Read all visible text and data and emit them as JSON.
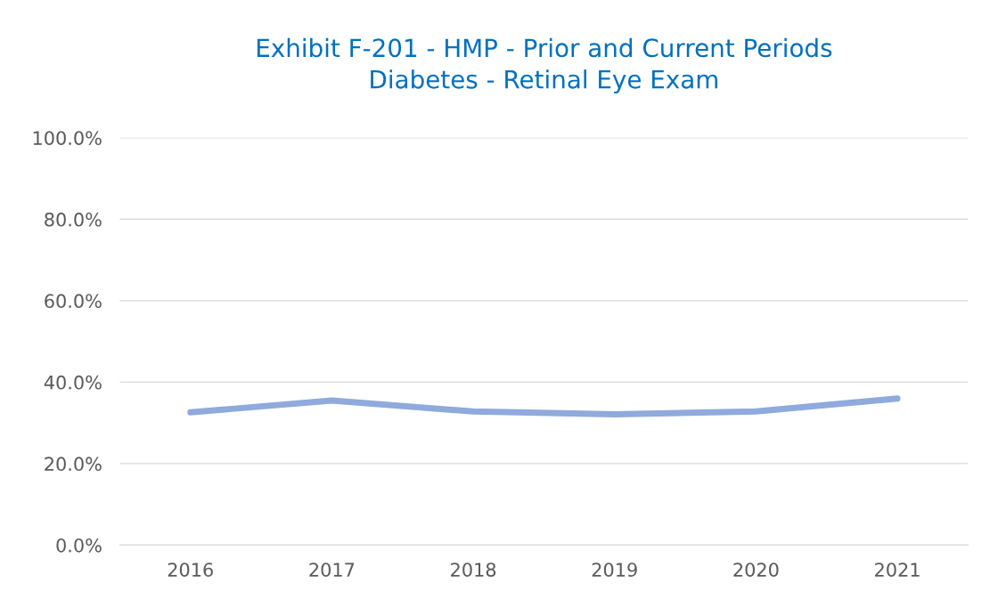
{
  "chart_data": {
    "type": "line",
    "title": "Exhibit F-201 - HMP - Prior and Current Periods\nDiabetes - Retinal Eye Exam",
    "categories": [
      "2016",
      "2017",
      "2018",
      "2019",
      "2020",
      "2021"
    ],
    "series": [
      {
        "color": "#8faadc",
        "values": [
          32.6,
          35.5,
          32.8,
          32.1,
          32.8,
          36.0
        ]
      }
    ],
    "ylim": [
      0,
      100
    ],
    "yticks": [
      {
        "value": 0,
        "label": "0.0%"
      },
      {
        "value": 20,
        "label": "20.0%"
      },
      {
        "value": 40,
        "label": "40.0%"
      },
      {
        "value": 60,
        "label": "60.0%"
      },
      {
        "value": 80,
        "label": "80.0%"
      },
      {
        "value": 100,
        "label": "100.0%"
      }
    ],
    "grid": "y",
    "legend": false
  }
}
